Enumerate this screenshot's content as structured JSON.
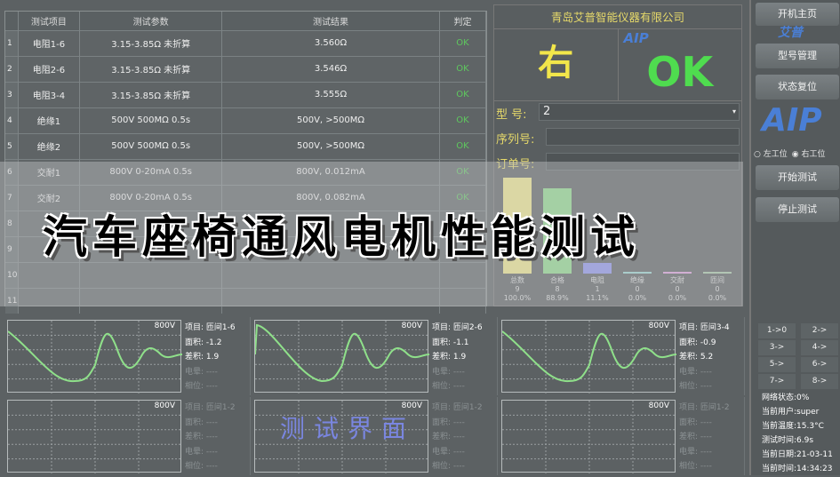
{
  "table": {
    "headers": [
      "测试项目",
      "测试参数",
      "测试结果",
      "判定"
    ],
    "rows": [
      {
        "n": "1",
        "item": "电阻1-6",
        "param": "3.15-3.85Ω 未折算",
        "result": "3.560Ω",
        "verdict": "OK"
      },
      {
        "n": "2",
        "item": "电阻2-6",
        "param": "3.15-3.85Ω 未折算",
        "result": "3.546Ω",
        "verdict": "OK"
      },
      {
        "n": "3",
        "item": "电阻3-4",
        "param": "3.15-3.85Ω 未折算",
        "result": "3.555Ω",
        "verdict": "OK"
      },
      {
        "n": "4",
        "item": "绝缘1",
        "param": "500V 500MΩ 0.5s",
        "result": "500V, >500MΩ",
        "verdict": "OK"
      },
      {
        "n": "5",
        "item": "绝缘2",
        "param": "500V 500MΩ 0.5s",
        "result": "500V, >500MΩ",
        "verdict": "OK"
      },
      {
        "n": "6",
        "item": "交耐1",
        "param": "800V 0-20mA 0.5s",
        "result": "800V, 0.012mA",
        "verdict": "OK"
      },
      {
        "n": "7",
        "item": "交耐2",
        "param": "800V 0-20mA 0.5s",
        "result": "800V, 0.082mA",
        "verdict": "OK"
      },
      {
        "n": "8",
        "item": "",
        "param": "",
        "result": "",
        "verdict": ""
      },
      {
        "n": "9",
        "item": "",
        "param": "",
        "result": "",
        "verdict": ""
      },
      {
        "n": "10",
        "item": "",
        "param": "",
        "result": "",
        "verdict": ""
      },
      {
        "n": "11",
        "item": "",
        "param": "",
        "result": "",
        "verdict": ""
      }
    ]
  },
  "company": "青岛艾普智能仪器有限公司",
  "station_result": "右",
  "overall_result": "OK",
  "logo_text": "AIP",
  "logo_cn": "艾普",
  "fields": {
    "model_label": "型 号:",
    "model_value": "2",
    "serial_label": "序列号:",
    "serial_value": "",
    "order_label": "订单号:",
    "order_value": ""
  },
  "stats": [
    {
      "label": "总数",
      "count": "9",
      "pct": "100.0%",
      "fraction": 1.0,
      "color": "#f2e98a"
    },
    {
      "label": "合格",
      "count": "8",
      "pct": "88.9%",
      "fraction": 0.889,
      "color": "#8fdc8a"
    },
    {
      "label": "电阻",
      "count": "1",
      "pct": "11.1%",
      "fraction": 0.111,
      "color": "#8c93f0"
    },
    {
      "label": "绝缘",
      "count": "0",
      "pct": "0.0%",
      "fraction": 0,
      "color": "#9ad8d2"
    },
    {
      "label": "交耐",
      "count": "0",
      "pct": "0.0%",
      "fraction": 0,
      "color": "#e0a0e0"
    },
    {
      "label": "匝间",
      "count": "0",
      "pct": "0.0%",
      "fraction": 0,
      "color": "#a8c8a8"
    }
  ],
  "sidebar": {
    "home": "开机主页",
    "model_mgmt": "型号管理",
    "reset": "状态复位",
    "left_station": "左工位",
    "right_station": "右工位",
    "station_selected": "right",
    "start": "开始测试",
    "stop": "停止测试"
  },
  "waves": [
    {
      "voltage": "800V",
      "item": "项目: 匝间1-6",
      "area": "面积: -1.2",
      "diff": "差积: 1.9",
      "corona": "电晕: ----",
      "phase": "相位: ----",
      "active": true
    },
    {
      "voltage": "800V",
      "item": "项目: 匝间2-6",
      "area": "面积: -1.1",
      "diff": "差积: 1.9",
      "corona": "电晕: ----",
      "phase": "相位: ----",
      "active": true
    },
    {
      "voltage": "800V",
      "item": "项目: 匝间3-4",
      "area": "面积: -0.9",
      "diff": "差积: 5.2",
      "corona": "电晕: ----",
      "phase": "相位: ----",
      "active": true
    },
    {
      "voltage": "800V",
      "item": "项目: 匝间1-2",
      "area": "面积: ----",
      "diff": "差积: ----",
      "corona": "电晕: ----",
      "phase": "相位: ----",
      "active": false
    },
    {
      "voltage": "800V",
      "item": "项目: 匝间1-2",
      "area": "面积: ----",
      "diff": "差积: ----",
      "corona": "电晕: ----",
      "phase": "相位: ----",
      "active": false
    },
    {
      "voltage": "800V",
      "item": "项目: 匝间1-2",
      "area": "面积: ----",
      "diff": "差积: ----",
      "corona": "电晕: ----",
      "phase": "相位: ----",
      "active": false
    }
  ],
  "keys": [
    "1->0",
    "2->",
    "3->",
    "4->",
    "5->",
    "6->",
    "7->",
    "8->"
  ],
  "status": {
    "network": "网络状态:0%",
    "user": "当前用户:super",
    "temp": "当前温度:15.3°C",
    "test_time": "测试时间:6.9s",
    "date": "当前日期:21-03-11",
    "time": "当前时间:14:34:23"
  },
  "overlay_title": "汽车座椅通风电机性能测试",
  "watermark": "测试界面",
  "colors": {
    "ok": "#5ec85e",
    "accent_yellow": "#e6d96a",
    "big_ok": "#4fdc4f",
    "logo": "#4a7fd6"
  }
}
